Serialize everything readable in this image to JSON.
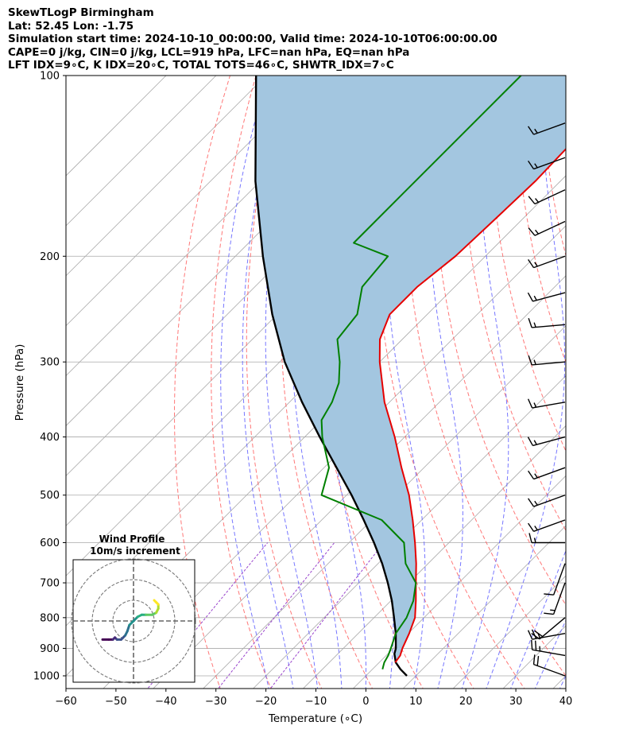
{
  "header": {
    "line1": "SkewTLogP Birmingham",
    "line2": "Lat: 52.45   Lon: -1.75",
    "line3": "Simulation start time: 2024-10-10_00:00:00, Valid time: 2024-10-10T06:00:00.00",
    "line4": "CAPE=0 j/kg, CIN=0 j/kg, LCL=919 hPa, LFC=nan hPa, EQ=nan hPa",
    "line5": "LFT IDX=9∘C, K IDX=20∘C, TOTAL TOTS=46∘C, SHWTR_IDX=7∘C"
  },
  "chart_data": {
    "type": "line",
    "subtype": "skew-t log-p",
    "xlabel": "Temperature (∘C)",
    "ylabel": "Pressure (hPa)",
    "xlim": [
      -60,
      40
    ],
    "ylim": [
      1050,
      100
    ],
    "y_scale": "log",
    "grid": true,
    "x_ticks": [
      "−60",
      "−50",
      "−40",
      "−30",
      "−20",
      "−10",
      "0",
      "10",
      "20",
      "30",
      "40"
    ],
    "y_ticks": [
      "100",
      "200",
      "300",
      "400",
      "500",
      "600",
      "700",
      "800",
      "900",
      "1000"
    ],
    "colors": {
      "temperature": "#e60000",
      "dewpoint": "#008000",
      "parcel": "#000000",
      "shade": "#a3c6e0",
      "isotherm": "#aaaaaa",
      "dry_adiabat": "#ff5555",
      "moist_adiabat": "#5555ff",
      "mixing_ratio": "#9944cc",
      "hodograph": "#3b1f6e"
    },
    "series": [
      {
        "kind": "temperature",
        "p": [
          950,
          925,
          900,
          850,
          800,
          750,
          700,
          650,
          600,
          550,
          500,
          450,
          400,
          350,
          300,
          275,
          250,
          225,
          200,
          175,
          150,
          125,
          100
        ],
        "t": [
          3.2,
          2.8,
          1.8,
          0.2,
          -1.8,
          -5.0,
          -8.6,
          -12.4,
          -16.8,
          -21.8,
          -27.5,
          -34.5,
          -42.0,
          -51.0,
          -60.0,
          -64.5,
          -67.5,
          -67.5,
          -66.0,
          -65.5,
          -65.0,
          -65.5,
          -66.0
        ]
      },
      {
        "kind": "dewpoint",
        "p": [
          975,
          950,
          925,
          900,
          850,
          800,
          750,
          700,
          650,
          600,
          550,
          500,
          450,
          400,
          375,
          350,
          325,
          300,
          275,
          250,
          225,
          200,
          190,
          150,
          100
        ],
        "t": [
          2.0,
          1.0,
          0.4,
          -0.5,
          -2.5,
          -3.5,
          -5.5,
          -8.6,
          -14.5,
          -19.0,
          -28.0,
          -45.0,
          -49.0,
          -56.5,
          -60.0,
          -61.5,
          -64.0,
          -68.0,
          -73.0,
          -74.0,
          -78.5,
          -79.5,
          -89.0,
          -89.0,
          -89.0
        ]
      },
      {
        "kind": "parcel",
        "p": [
          1000,
          975,
          950,
          919,
          900,
          850,
          800,
          750,
          700,
          650,
          600,
          550,
          500,
          450,
          400,
          350,
          300,
          250,
          200,
          150,
          100
        ],
        "t": [
          8.2,
          5.6,
          3.3,
          1.3,
          0.5,
          -2.5,
          -6.0,
          -9.8,
          -14.2,
          -19.2,
          -25.0,
          -31.6,
          -39.0,
          -47.5,
          -57.0,
          -67.5,
          -79.0,
          -91.0,
          -104.5,
          -121.0,
          -142.0
        ]
      }
    ],
    "wind_barbs_note": "wind barbs along right edge",
    "wind_barbs": [
      {
        "p": 1000,
        "speed_kt": 20,
        "dir": 290
      },
      {
        "p": 925,
        "speed_kt": 25,
        "dir": 280
      },
      {
        "p": 850,
        "speed_kt": 25,
        "dir": 260
      },
      {
        "p": 800,
        "speed_kt": 20,
        "dir": 230
      },
      {
        "p": 700,
        "speed_kt": 15,
        "dir": 200
      },
      {
        "p": 650,
        "speed_kt": 10,
        "dir": 200
      },
      {
        "p": 600,
        "speed_kt": 15,
        "dir": 270
      },
      {
        "p": 550,
        "speed_kt": 15,
        "dir": 250
      },
      {
        "p": 500,
        "speed_kt": 15,
        "dir": 250
      },
      {
        "p": 450,
        "speed_kt": 15,
        "dir": 250
      },
      {
        "p": 400,
        "speed_kt": 15,
        "dir": 255
      },
      {
        "p": 350,
        "speed_kt": 15,
        "dir": 260
      },
      {
        "p": 300,
        "speed_kt": 15,
        "dir": 265
      },
      {
        "p": 260,
        "speed_kt": 15,
        "dir": 265
      },
      {
        "p": 230,
        "speed_kt": 15,
        "dir": 255
      },
      {
        "p": 200,
        "speed_kt": 15,
        "dir": 250
      },
      {
        "p": 175,
        "speed_kt": 15,
        "dir": 245
      },
      {
        "p": 155,
        "speed_kt": 15,
        "dir": 245
      },
      {
        "p": 137,
        "speed_kt": 15,
        "dir": 250
      },
      {
        "p": 120,
        "speed_kt": 15,
        "dir": 250
      }
    ],
    "inset": {
      "title": "Wind Profile",
      "subtitle": "10m/s increment",
      "rings": [
        10,
        20,
        30
      ],
      "hodograph_uv": [
        [
          -15,
          -9
        ],
        [
          -12,
          -9
        ],
        [
          -10,
          -9
        ],
        [
          -9,
          -8
        ],
        [
          -8,
          -9
        ],
        [
          -6,
          -9
        ],
        [
          -4,
          -7
        ],
        [
          -3,
          -5
        ],
        [
          -2,
          -2
        ],
        [
          0,
          0
        ],
        [
          2,
          2
        ],
        [
          4,
          3
        ],
        [
          6,
          3
        ],
        [
          9,
          3
        ],
        [
          11,
          4
        ],
        [
          12,
          6
        ],
        [
          12,
          8
        ],
        [
          11,
          9
        ],
        [
          10,
          10
        ]
      ]
    }
  }
}
